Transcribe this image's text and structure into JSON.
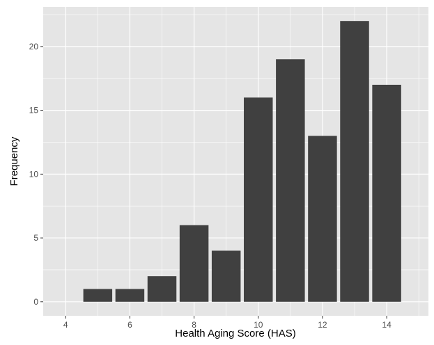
{
  "chart_data": {
    "type": "bar",
    "title": "",
    "xlabel": "Health Aging Score (HAS)",
    "ylabel": "Frequency",
    "x": [
      5,
      6,
      7,
      8,
      9,
      10,
      11,
      12,
      13,
      14
    ],
    "values": [
      1,
      1,
      2,
      6,
      4,
      16,
      19,
      13,
      22,
      17
    ],
    "xlim": [
      3.3,
      15.3
    ],
    "ylim": [
      -1.1,
      23.1
    ],
    "x_ticks": [
      4,
      6,
      8,
      10,
      12,
      14
    ],
    "y_ticks": [
      0,
      5,
      10,
      15,
      20
    ],
    "grid": true,
    "legend": "none",
    "colors": {
      "panel_background": "#e5e5e5",
      "grid": "#ffffff",
      "bar_fill": "#404040",
      "tick_text": "#4d4d4d",
      "axis_title": "#000000"
    }
  }
}
